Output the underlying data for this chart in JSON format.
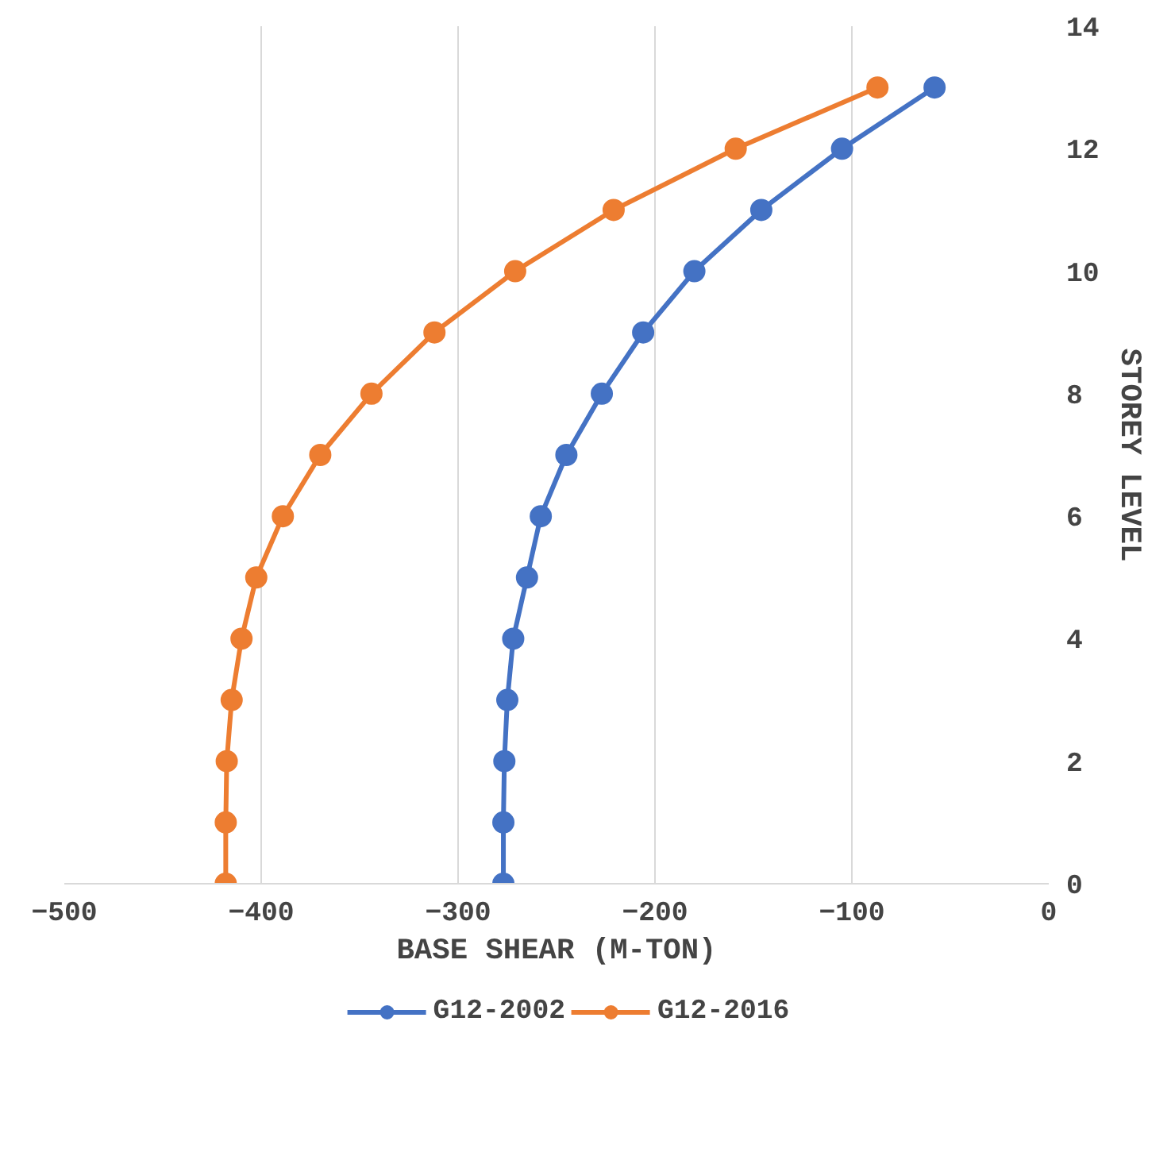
{
  "chart_data": {
    "type": "line",
    "xlabel": "BASE SHEAR (M-TON)",
    "ylabel": "STOREY LEVEL",
    "series": [
      {
        "name": "G12-2002",
        "color": "#4472c4",
        "x": [
          -277,
          -277,
          -276.5,
          -275,
          -272,
          -265,
          -258,
          -245,
          -227,
          -206,
          -180,
          -146,
          -105,
          -58
        ],
        "values": [
          0,
          1,
          2,
          3,
          4,
          5,
          6,
          7,
          8,
          9,
          10,
          11,
          12,
          13
        ]
      },
      {
        "name": "G12-2016",
        "color": "#ed7d31",
        "x": [
          -418,
          -418,
          -417.5,
          -415,
          -410,
          -402.5,
          -389,
          -370,
          -344,
          -312,
          -271,
          -221,
          -159,
          -87
        ],
        "values": [
          0,
          1,
          2,
          3,
          4,
          5,
          6,
          7,
          8,
          9,
          10,
          11,
          12,
          13
        ]
      }
    ],
    "xlim": [
      -500,
      0
    ],
    "xticks": [
      -500,
      -400,
      -300,
      -200,
      -100,
      0
    ],
    "ylim": [
      0,
      14
    ],
    "yticks": [
      0,
      2,
      4,
      6,
      8,
      10,
      12,
      14
    ],
    "grid": "x",
    "legend": "bottom",
    "marker": "circle",
    "line_style": "solid"
  }
}
